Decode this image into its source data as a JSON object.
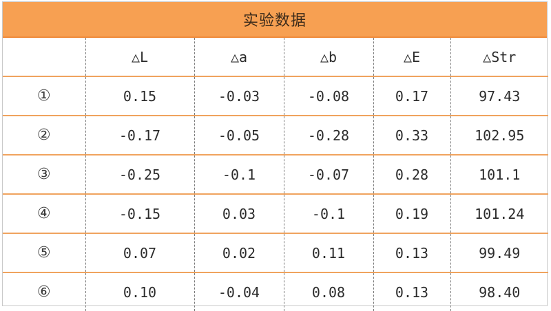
{
  "title": "实验数据",
  "headers": [
    "",
    "△L",
    "△a",
    "△b",
    "△E",
    "△Str"
  ],
  "rows": [
    {
      "idx": "①",
      "dL": "0.15",
      "da": "-0.03",
      "db": "-0.08",
      "dE": "0.17",
      "dStr": "97.43"
    },
    {
      "idx": "②",
      "dL": "-0.17",
      "da": "-0.05",
      "db": "-0.28",
      "dE": "0.33",
      "dStr": "102.95"
    },
    {
      "idx": "③",
      "dL": "-0.25",
      "da": "-0.1",
      "db": "-0.07",
      "dE": "0.28",
      "dStr": "101.1"
    },
    {
      "idx": "④",
      "dL": "-0.15",
      "da": "0.03",
      "db": "-0.1",
      "dE": "0.19",
      "dStr": "101.24"
    },
    {
      "idx": "⑤",
      "dL": "0.07",
      "da": "0.02",
      "db": "0.11",
      "dE": "0.13",
      "dStr": "99.49"
    },
    {
      "idx": "⑥",
      "dL": "0.10",
      "da": "-0.04",
      "db": "0.08",
      "dE": "0.13",
      "dStr": "98.40"
    }
  ],
  "colors": {
    "header_bg": "#f7a052",
    "row_divider": "#f0a35e"
  }
}
